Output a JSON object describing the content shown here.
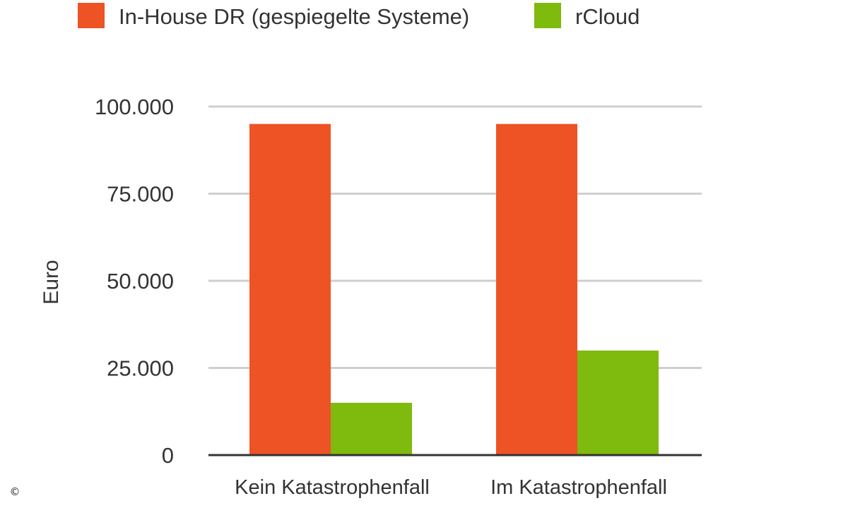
{
  "chart_data": {
    "type": "bar",
    "categories": [
      "Kein Katastrophenfall",
      "Im Katastrophenfall"
    ],
    "series": [
      {
        "name": "In-House DR (gespiegelte Systeme)",
        "color": "#EE5325",
        "values": [
          95000,
          95000
        ]
      },
      {
        "name": "rCloud",
        "color": "#7FBA0E",
        "values": [
          15000,
          30000
        ]
      }
    ],
    "xlabel": "",
    "ylabel": "Euro",
    "ylim": [
      0,
      100000
    ],
    "yticks": [
      0,
      25000,
      50000,
      75000,
      100000
    ],
    "ytick_labels": [
      "0",
      "25.000",
      "50.000",
      "75.000",
      "100.000"
    ],
    "grid": true,
    "legend_position": "top-left"
  },
  "copyright_symbol": "©"
}
